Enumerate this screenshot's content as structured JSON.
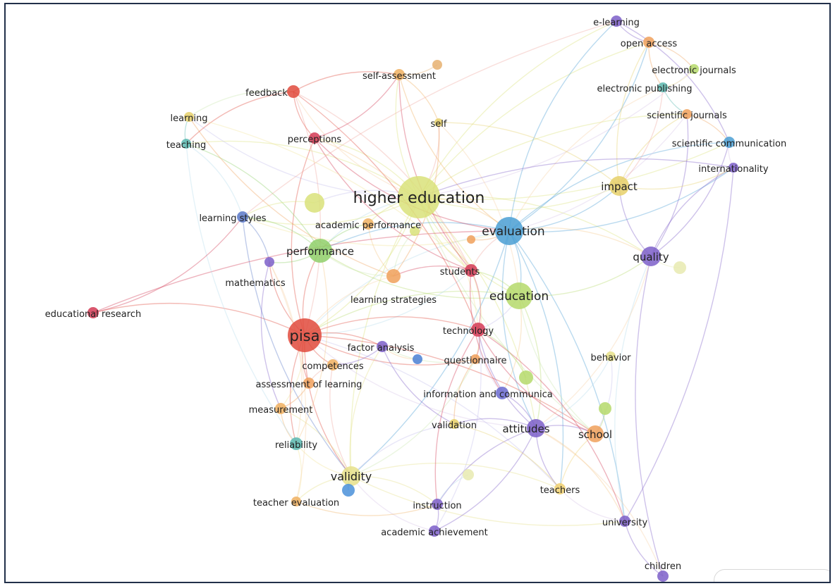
{
  "map": {
    "nodes": [
      {
        "id": "higher-education",
        "label": "higher education",
        "color": "#d9e27a",
        "weight": 10
      },
      {
        "id": "evaluation",
        "label": "evaluation",
        "color": "#4a9fd4",
        "weight": 8
      },
      {
        "id": "education",
        "label": "education",
        "color": "#b5d96b",
        "weight": 7
      },
      {
        "id": "pisa",
        "label": "pisa",
        "color": "#e04a3c",
        "weight": 9
      },
      {
        "id": "performance",
        "label": "performance",
        "color": "#8fcf6a",
        "weight": 6
      },
      {
        "id": "quality",
        "label": "quality",
        "color": "#7d5fc9",
        "weight": 5
      },
      {
        "id": "impact",
        "label": "impact",
        "color": "#e6d068",
        "weight": 5
      },
      {
        "id": "validity",
        "label": "validity",
        "color": "#e6e08a",
        "weight": 5
      },
      {
        "id": "attitudes",
        "label": "attitudes",
        "color": "#7d5fc9",
        "weight": 5
      },
      {
        "id": "school",
        "label": "school",
        "color": "#f0a05a",
        "weight": 4
      },
      {
        "id": "students",
        "label": "students",
        "color": "#d33a55",
        "weight": 4
      },
      {
        "id": "technology",
        "label": "technology",
        "color": "#d33a55",
        "weight": 4
      },
      {
        "id": "factor-analysis",
        "label": "factor analysis",
        "color": "#7d5fc9",
        "weight": 3
      },
      {
        "id": "learning-strategies",
        "label": "learning strategies",
        "color": "#f0a05a",
        "weight": 4
      },
      {
        "id": "academic-performance",
        "label": "academic performance",
        "color": "#f0b060",
        "weight": 3
      },
      {
        "id": "learning-styles",
        "label": "learning styles",
        "color": "#5a78c8",
        "weight": 3
      },
      {
        "id": "mathematics",
        "label": "mathematics",
        "color": "#7d5fc9",
        "weight": 3
      },
      {
        "id": "educational-research",
        "label": "educational research",
        "color": "#d33a55",
        "weight": 3
      },
      {
        "id": "competences",
        "label": "competences",
        "color": "#f0b060",
        "weight": 3
      },
      {
        "id": "questionnaire",
        "label": "questionnaire",
        "color": "#f0a05a",
        "weight": 3
      },
      {
        "id": "behavior",
        "label": "behavior",
        "color": "#e6e08a",
        "weight": 3
      },
      {
        "id": "assessment-of-learning",
        "label": "assessment of learning",
        "color": "#f0a05a",
        "weight": 3
      },
      {
        "id": "information-and-communica",
        "label": "information and communica",
        "color": "#6a6ad0",
        "weight": 3
      },
      {
        "id": "measurement",
        "label": "measurement",
        "color": "#f0b060",
        "weight": 3
      },
      {
        "id": "validation",
        "label": "validation",
        "color": "#e6d068",
        "weight": 3
      },
      {
        "id": "reliability",
        "label": "reliability",
        "color": "#5ab8b0",
        "weight": 3
      },
      {
        "id": "teacher-evaluation",
        "label": "teacher evaluation",
        "color": "#f0b060",
        "weight": 3
      },
      {
        "id": "instruction",
        "label": "instruction",
        "color": "#7d5fc9",
        "weight": 3
      },
      {
        "id": "academic-achievement",
        "label": "academic achievement",
        "color": "#7d5fc9",
        "weight": 3
      },
      {
        "id": "teachers",
        "label": "teachers",
        "color": "#f0d070",
        "weight": 3
      },
      {
        "id": "university",
        "label": "university",
        "color": "#7d5fc9",
        "weight": 3
      },
      {
        "id": "children",
        "label": "children",
        "color": "#7d5fc9",
        "weight": 3
      },
      {
        "id": "feedback",
        "label": "feedback",
        "color": "#e04a3c",
        "weight": 3
      },
      {
        "id": "learning",
        "label": "learning",
        "color": "#e6d068",
        "weight": 2
      },
      {
        "id": "teaching",
        "label": "teaching",
        "color": "#5ab8b0",
        "weight": 2
      },
      {
        "id": "perceptions",
        "label": "perceptions",
        "color": "#d33a55",
        "weight": 3
      },
      {
        "id": "self-assessment",
        "label": "self-assessment",
        "color": "#f0b060",
        "weight": 3
      },
      {
        "id": "self",
        "label": "self",
        "color": "#e6d068",
        "weight": 2
      },
      {
        "id": "e-learning",
        "label": "e-learning",
        "color": "#7d5fc9",
        "weight": 2
      },
      {
        "id": "open-access",
        "label": "open access",
        "color": "#f0a05a",
        "weight": 3
      },
      {
        "id": "electronic-journals",
        "label": "electronic journals",
        "color": "#b5d96b",
        "weight": 2
      },
      {
        "id": "electronic-publishing",
        "label": "electronic publishing",
        "color": "#5ab8b0",
        "weight": 2
      },
      {
        "id": "scientific-journals",
        "label": "scientific journals",
        "color": "#f0a05a",
        "weight": 2
      },
      {
        "id": "scientific-communication",
        "label": "scientific communication",
        "color": "#4a9fd4",
        "weight": 3
      },
      {
        "id": "internationality",
        "label": "internationality",
        "color": "#7d5fc9",
        "weight": 2
      },
      {
        "id": "unlabeled-a",
        "label": "",
        "color": "#d9e27a",
        "weight": 3
      },
      {
        "id": "unlabeled-b",
        "label": "",
        "color": "#e6b070",
        "weight": 2
      },
      {
        "id": "unlabeled-c",
        "label": "",
        "color": "#d9e27a",
        "weight": 2
      },
      {
        "id": "unlabeled-d",
        "label": "",
        "color": "#e8eab0",
        "weight": 2
      },
      {
        "id": "unlabeled-e",
        "label": "",
        "color": "#b5d96b",
        "weight": 2
      },
      {
        "id": "unlabeled-f",
        "label": "",
        "color": "#4a7fd4",
        "weight": 2
      },
      {
        "id": "unlabeled-g",
        "label": "",
        "color": "#f0a05a",
        "weight": 2
      },
      {
        "id": "unlabeled-h",
        "label": "",
        "color": "#b5d96b",
        "weight": 2
      },
      {
        "id": "unlabeled-i",
        "label": "",
        "color": "#e8eab0",
        "weight": 2
      },
      {
        "id": "unlabeled-j",
        "label": "",
        "color": "#4a90d9",
        "weight": 2
      }
    ],
    "link_colors": [
      "#f4c98a",
      "#f0a8a0",
      "#c6c0ec",
      "#b9dcec",
      "#f2e59a",
      "#cbe7b0",
      "#f7d2a8",
      "#d8c4e8"
    ]
  }
}
